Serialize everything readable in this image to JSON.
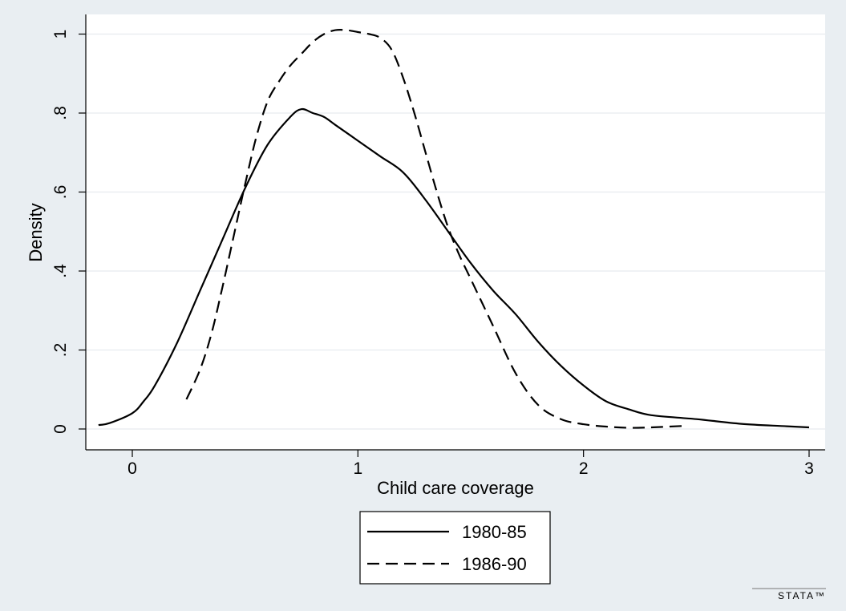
{
  "chart_data": {
    "type": "line",
    "title": "",
    "xlabel": "Child care coverage",
    "ylabel": "Density",
    "xlim": [
      -0.2,
      3.05
    ],
    "ylim": [
      -0.02,
      1.05
    ],
    "x_ticks": [
      0,
      1,
      2,
      3
    ],
    "x_tick_labels": [
      "0",
      "1",
      "2",
      "3"
    ],
    "y_ticks": [
      0,
      0.2,
      0.4,
      0.6,
      0.8,
      1
    ],
    "y_tick_labels": [
      "0",
      ".2",
      ".4",
      ".6",
      ".8",
      "1"
    ],
    "grid": "horizontal",
    "legend_position": "bottom-center",
    "series": [
      {
        "name": "1980-85",
        "line_style": "solid",
        "x": [
          -0.15,
          -0.1,
          0,
          0.05,
          0.1,
          0.2,
          0.3,
          0.4,
          0.5,
          0.6,
          0.7,
          0.75,
          0.8,
          0.85,
          0.9,
          1.0,
          1.1,
          1.2,
          1.3,
          1.4,
          1.5,
          1.6,
          1.7,
          1.8,
          1.9,
          2.0,
          2.1,
          2.2,
          2.3,
          2.5,
          2.7,
          2.9,
          3.0
        ],
        "y": [
          0.01,
          0.015,
          0.04,
          0.07,
          0.11,
          0.22,
          0.35,
          0.48,
          0.61,
          0.72,
          0.79,
          0.81,
          0.8,
          0.79,
          0.77,
          0.73,
          0.69,
          0.65,
          0.58,
          0.5,
          0.42,
          0.35,
          0.29,
          0.22,
          0.16,
          0.11,
          0.07,
          0.05,
          0.035,
          0.025,
          0.013,
          0.007,
          0.004
        ]
      },
      {
        "name": "1986-90",
        "line_style": "dashed",
        "x": [
          0.24,
          0.3,
          0.35,
          0.4,
          0.45,
          0.5,
          0.55,
          0.6,
          0.65,
          0.7,
          0.75,
          0.8,
          0.85,
          0.9,
          0.95,
          1.0,
          1.05,
          1.1,
          1.15,
          1.2,
          1.25,
          1.3,
          1.35,
          1.4,
          1.45,
          1.5,
          1.6,
          1.7,
          1.8,
          1.9,
          2.0,
          2.1,
          2.2,
          2.3,
          2.45
        ],
        "y": [
          0.075,
          0.15,
          0.24,
          0.36,
          0.49,
          0.62,
          0.74,
          0.83,
          0.88,
          0.92,
          0.95,
          0.98,
          1.0,
          1.01,
          1.01,
          1.005,
          1.0,
          0.99,
          0.96,
          0.89,
          0.8,
          0.7,
          0.6,
          0.51,
          0.44,
          0.38,
          0.26,
          0.14,
          0.06,
          0.025,
          0.012,
          0.006,
          0.003,
          0.004,
          0.008
        ]
      }
    ]
  },
  "branding": {
    "logo_text": "STATA™"
  }
}
